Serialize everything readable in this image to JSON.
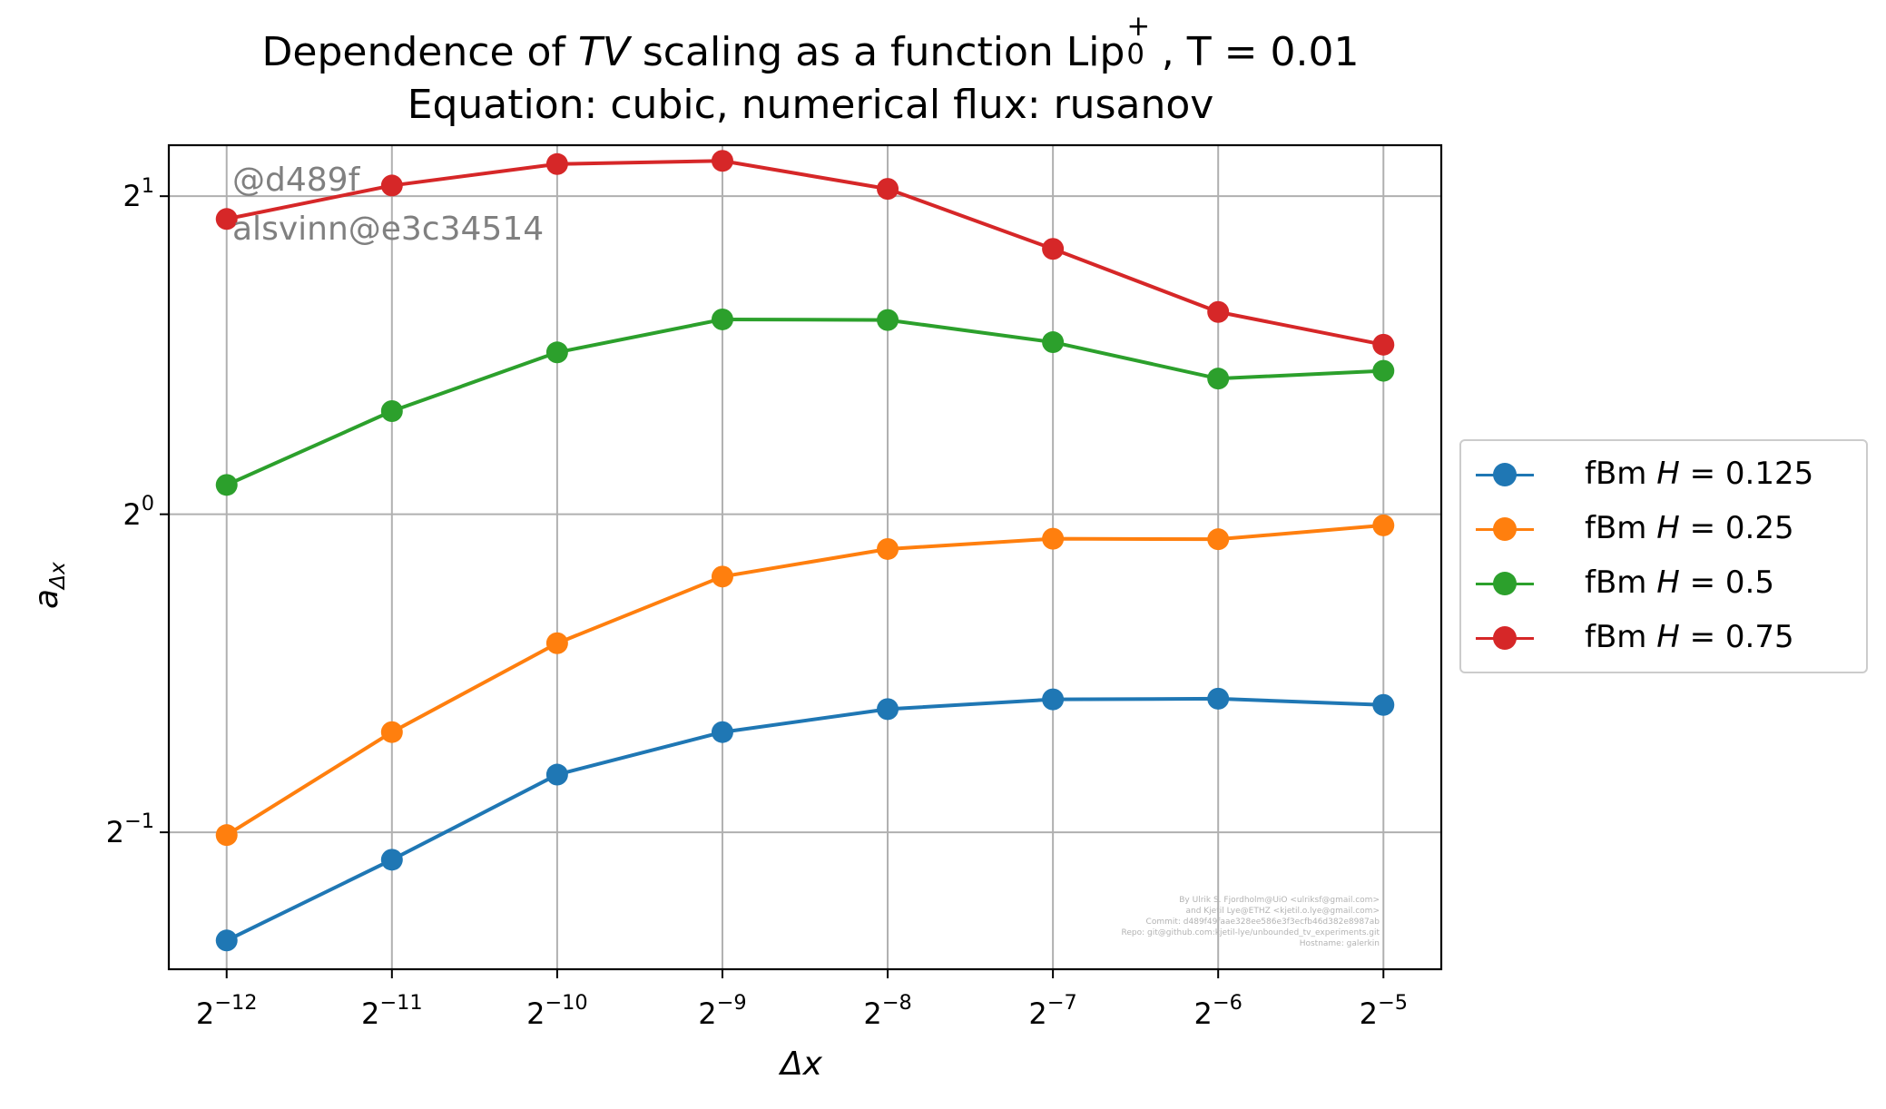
{
  "chart_data": {
    "type": "line",
    "title_line1_prefix": "Dependence of ",
    "title_line1_tv": "TV",
    "title_line1_mid": " scaling as a function Lip",
    "title_line1_sup": "+",
    "title_line1_sub": "0",
    "title_line1_suffix": " , T = 0.01",
    "title_line2": "Equation: cubic, numerical flux: rusanov",
    "xlabel": "Δx",
    "ylabel": "a",
    "ylabel_sub": "Δx",
    "x_scale": "log2",
    "y_scale": "log2",
    "x_ticks": [
      {
        "base": "2",
        "exp": "−12"
      },
      {
        "base": "2",
        "exp": "−11"
      },
      {
        "base": "2",
        "exp": "−10"
      },
      {
        "base": "2",
        "exp": "−9"
      },
      {
        "base": "2",
        "exp": "−8"
      },
      {
        "base": "2",
        "exp": "−7"
      },
      {
        "base": "2",
        "exp": "−6"
      },
      {
        "base": "2",
        "exp": "−5"
      }
    ],
    "y_ticks": [
      {
        "base": "2",
        "exp": "1"
      },
      {
        "base": "2",
        "exp": "0"
      },
      {
        "base": "2",
        "exp": "−1"
      }
    ],
    "x_exponents": [
      -12,
      -11,
      -10,
      -9,
      -8,
      -7,
      -6,
      -5
    ],
    "x_range_exponents": [
      -12.35,
      -4.65
    ],
    "y_range": [
      0.371,
      2.235
    ],
    "grid": true,
    "legend_position": "center right, outside plot",
    "series": [
      {
        "name": "fBm H = 0.125",
        "name_prefix": "fBm ",
        "name_var": "H",
        "name_value": " = 0.125",
        "color": "#1f77b4",
        "values": [
          0.395,
          0.471,
          0.567,
          0.622,
          0.654,
          0.668,
          0.669,
          0.66
        ]
      },
      {
        "name": "fBm H = 0.25",
        "name_prefix": "fBm ",
        "name_var": "H",
        "name_value": " = 0.25",
        "color": "#ff7f0e",
        "values": [
          0.497,
          0.622,
          0.755,
          0.873,
          0.927,
          0.948,
          0.947,
          0.976
        ]
      },
      {
        "name": "fBm H = 0.5",
        "name_prefix": "fBm ",
        "name_var": "H",
        "name_value": " = 0.5",
        "color": "#2ca02c",
        "values": [
          1.066,
          1.252,
          1.423,
          1.529,
          1.527,
          1.455,
          1.344,
          1.367
        ]
      },
      {
        "name": "fBm H = 0.75",
        "name_prefix": "fBm ",
        "name_var": "H",
        "name_value": " = 0.75",
        "color": "#d62728",
        "values": [
          1.903,
          2.047,
          2.145,
          2.16,
          2.032,
          1.783,
          1.554,
          1.447
        ]
      }
    ]
  },
  "watermark": {
    "line1": "@d489f",
    "line2": "alsvinn@e3c34514"
  },
  "credits": [
    "By Ulrik S. Fjordholm@UiO <ulriksf@gmail.com>",
    "and Kjetil Lye@ETHZ <kjetil.o.lye@gmail.com>",
    "Commit: d489f49faae328ee586e3f3ecfb46d382e8987ab",
    "Repo: git@github.com:kjetil-lye/unbounded_tv_experiments.git",
    "Hostname: galerkin"
  ]
}
